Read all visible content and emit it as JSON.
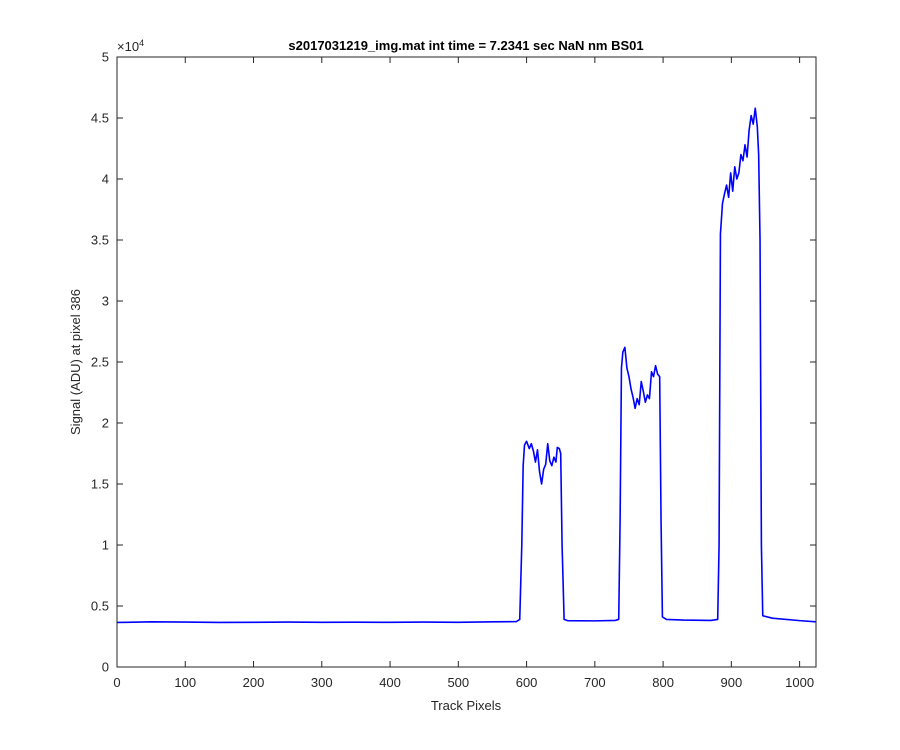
{
  "chart_data": {
    "type": "line",
    "title": "s2017031219_img.mat int time = 7.2341 sec  NaN nm BS01",
    "xlabel": "Track Pixels",
    "ylabel": "Signal (ADU) at pixel 386",
    "xlim": [
      0,
      1024
    ],
    "ylim": [
      0,
      50000
    ],
    "y_exponent_label": "×10",
    "y_exponent_power": "4",
    "x_ticks": [
      0,
      100,
      200,
      300,
      400,
      500,
      600,
      700,
      800,
      900,
      1000
    ],
    "x_tick_labels": [
      "0",
      "100",
      "200",
      "300",
      "400",
      "500",
      "600",
      "700",
      "800",
      "900",
      "1000"
    ],
    "y_ticks": [
      0,
      5000,
      10000,
      15000,
      20000,
      25000,
      30000,
      35000,
      40000,
      45000,
      50000
    ],
    "y_tick_labels": [
      "0",
      "0.5",
      "1",
      "1.5",
      "2",
      "2.5",
      "3",
      "3.5",
      "4",
      "4.5",
      "5"
    ],
    "grid": false,
    "series": [
      {
        "color": "#0000ff",
        "points": [
          [
            0,
            3650
          ],
          [
            50,
            3700
          ],
          [
            100,
            3680
          ],
          [
            150,
            3650
          ],
          [
            200,
            3660
          ],
          [
            250,
            3680
          ],
          [
            300,
            3660
          ],
          [
            350,
            3670
          ],
          [
            400,
            3660
          ],
          [
            450,
            3680
          ],
          [
            500,
            3660
          ],
          [
            550,
            3700
          ],
          [
            585,
            3720
          ],
          [
            590,
            3900
          ],
          [
            593,
            10000
          ],
          [
            595,
            16500
          ],
          [
            597,
            18200
          ],
          [
            600,
            18500
          ],
          [
            604,
            17900
          ],
          [
            607,
            18300
          ],
          [
            610,
            17700
          ],
          [
            613,
            16800
          ],
          [
            616,
            17800
          ],
          [
            619,
            16000
          ],
          [
            622,
            15000
          ],
          [
            625,
            16200
          ],
          [
            628,
            16600
          ],
          [
            631,
            18300
          ],
          [
            634,
            16900
          ],
          [
            637,
            16500
          ],
          [
            640,
            17200
          ],
          [
            643,
            16800
          ],
          [
            645,
            18000
          ],
          [
            648,
            17900
          ],
          [
            650,
            17500
          ],
          [
            652,
            10000
          ],
          [
            655,
            3900
          ],
          [
            660,
            3800
          ],
          [
            700,
            3780
          ],
          [
            730,
            3820
          ],
          [
            735,
            3900
          ],
          [
            737,
            12000
          ],
          [
            739,
            24500
          ],
          [
            741,
            25800
          ],
          [
            744,
            26200
          ],
          [
            747,
            24500
          ],
          [
            750,
            23800
          ],
          [
            753,
            22800
          ],
          [
            756,
            22100
          ],
          [
            759,
            21200
          ],
          [
            762,
            22000
          ],
          [
            765,
            21500
          ],
          [
            768,
            23400
          ],
          [
            771,
            22600
          ],
          [
            774,
            21700
          ],
          [
            777,
            22300
          ],
          [
            780,
            22000
          ],
          [
            783,
            24200
          ],
          [
            786,
            23800
          ],
          [
            789,
            24700
          ],
          [
            792,
            24000
          ],
          [
            795,
            23800
          ],
          [
            797,
            12000
          ],
          [
            799,
            4100
          ],
          [
            805,
            3900
          ],
          [
            830,
            3850
          ],
          [
            870,
            3820
          ],
          [
            880,
            3900
          ],
          [
            882,
            10000
          ],
          [
            884,
            35500
          ],
          [
            887,
            38000
          ],
          [
            890,
            38800
          ],
          [
            893,
            39500
          ],
          [
            896,
            38500
          ],
          [
            899,
            40500
          ],
          [
            902,
            39000
          ],
          [
            905,
            41000
          ],
          [
            908,
            40000
          ],
          [
            911,
            40500
          ],
          [
            914,
            42000
          ],
          [
            917,
            41500
          ],
          [
            920,
            42800
          ],
          [
            923,
            41800
          ],
          [
            926,
            44000
          ],
          [
            929,
            45200
          ],
          [
            932,
            44500
          ],
          [
            935,
            45800
          ],
          [
            938,
            44300
          ],
          [
            940,
            42000
          ],
          [
            942,
            35000
          ],
          [
            944,
            10000
          ],
          [
            946,
            4200
          ],
          [
            960,
            4000
          ],
          [
            1000,
            3800
          ],
          [
            1024,
            3700
          ]
        ]
      }
    ]
  }
}
